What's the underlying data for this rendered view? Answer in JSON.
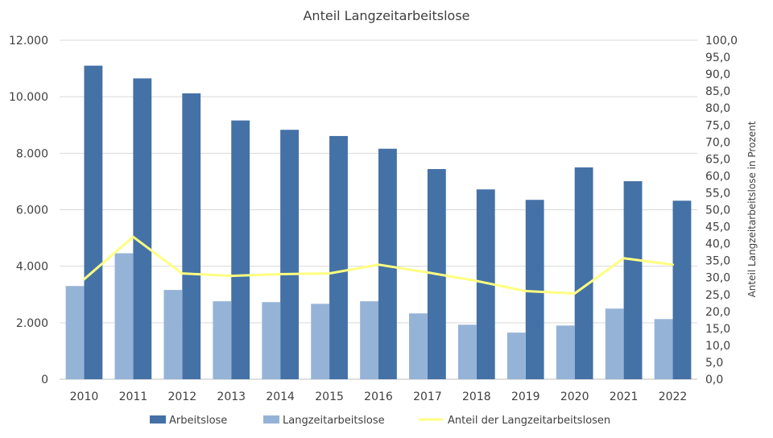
{
  "chart_data": {
    "type": "bar",
    "title": "Anteil Langzeitarbeitslose",
    "categories": [
      "2010",
      "2011",
      "2012",
      "2013",
      "2014",
      "2015",
      "2016",
      "2017",
      "2018",
      "2019",
      "2020",
      "2021",
      "2022"
    ],
    "series": [
      {
        "name": "Arbeitslose",
        "type": "bar",
        "axis": "left",
        "color": "#4471a6",
        "values": [
          11100,
          10650,
          10120,
          9160,
          8830,
          8610,
          8160,
          7440,
          6720,
          6350,
          7500,
          7010,
          6320
        ]
      },
      {
        "name": "Langzeitarbeitslose",
        "type": "bar",
        "axis": "left",
        "color": "#95b3d7",
        "values": [
          3300,
          4460,
          3160,
          2760,
          2730,
          2670,
          2760,
          2330,
          1930,
          1650,
          1900,
          2500,
          2130
        ]
      },
      {
        "name": "Anteil der Langzeitarbeitslosen",
        "type": "line",
        "axis": "right",
        "color": "#ffff80",
        "values": [
          29.5,
          42.0,
          31.2,
          30.5,
          31.0,
          31.2,
          33.8,
          31.5,
          29.0,
          26.0,
          25.3,
          35.7,
          33.8
        ]
      }
    ],
    "y_left": {
      "min": 0,
      "max": 12000,
      "ticks": [
        0,
        2000,
        4000,
        6000,
        8000,
        10000,
        12000
      ],
      "tick_labels": [
        "0",
        "2.000",
        "4.000",
        "6.000",
        "8.000",
        "10.000",
        "12.000"
      ]
    },
    "y_right": {
      "min": 0,
      "max": 100,
      "label": "Anteil Langzeitarbeitslose  in Prozent",
      "ticks": [
        0,
        5,
        10,
        15,
        20,
        25,
        30,
        35,
        40,
        45,
        50,
        55,
        60,
        65,
        70,
        75,
        80,
        85,
        90,
        95,
        100
      ],
      "tick_labels": [
        "0,0",
        "5,0",
        "10,0",
        "15,0",
        "20,0",
        "25,0",
        "30,0",
        "35,0",
        "40,0",
        "45,0",
        "50,0",
        "55,0",
        "60,0",
        "65,0",
        "70,0",
        "75,0",
        "80,0",
        "85,0",
        "90,0",
        "95,0",
        "100,0"
      ]
    },
    "grid": true,
    "legend_position": "bottom"
  }
}
